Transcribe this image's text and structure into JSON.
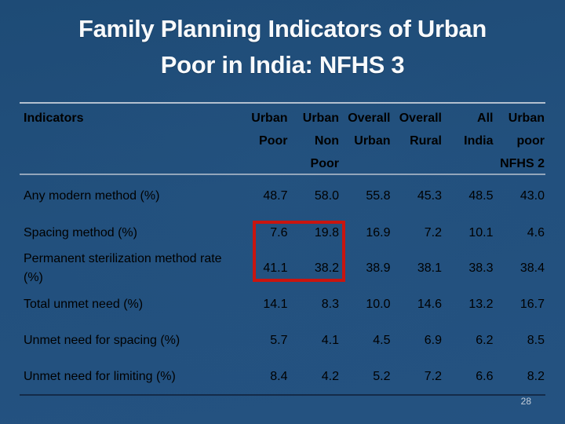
{
  "slide": {
    "title": "Family Planning Indicators of Urban\nPoor in India: NFHS 3",
    "page_number": "28",
    "colors": {
      "background_blue": "#22507D",
      "title_text": "#F8FAFC",
      "table_text": "#F2F5F9",
      "header_rule_top": "#B3C0CF",
      "header_rule_mid": "#93A6BB",
      "footer_rule": "#142B49",
      "highlight_red": "#C9150F"
    }
  },
  "table": {
    "columns": [
      "Indicators",
      "Urban\nPoor",
      "Urban\nNon\nPoor",
      "Overall\nUrban",
      "Overall\nRural",
      "All\nIndia",
      "Urban\npoor\nNFHS 2"
    ],
    "rows": [
      {
        "label": "Any modern method (%)",
        "values": [
          "48.7",
          "58.0",
          "55.8",
          "45.3",
          "48.5",
          "43.0"
        ]
      },
      {
        "label": "Spacing method (%)",
        "values": [
          "7.6",
          "19.8",
          "16.9",
          "7.2",
          "10.1",
          "4.6"
        ]
      },
      {
        "label": "Permanent sterilization method rate (%)",
        "values": [
          "41.1",
          "38.2",
          "38.9",
          "38.1",
          "38.3",
          "38.4"
        ]
      },
      {
        "label": "Total unmet need (%)",
        "values": [
          "14.1",
          "8.3",
          "10.0",
          "14.6",
          "13.2",
          "16.7"
        ]
      },
      {
        "label": "Unmet need for spacing (%)",
        "values": [
          "5.7",
          "4.1",
          "4.5",
          "6.9",
          "6.2",
          "8.5"
        ]
      },
      {
        "label": "Unmet need for limiting (%)",
        "values": [
          "8.4",
          "4.2",
          "5.2",
          "7.2",
          "6.6",
          "8.2"
        ]
      }
    ],
    "highlight_note": "red rectangle around Urban Poor and Urban Non Poor values of the Spacing method and Permanent sterilization rows"
  }
}
